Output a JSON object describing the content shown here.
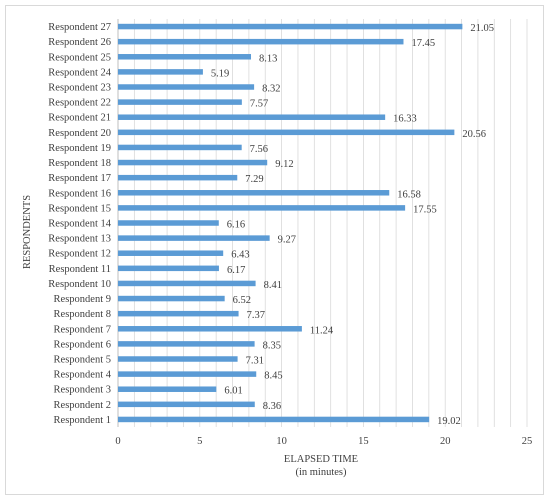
{
  "chart_data": {
    "type": "bar",
    "orientation": "horizontal",
    "categories": [
      "Respondent 1",
      "Respondent 2",
      "Respondent 3",
      "Respondent 4",
      "Respondent 5",
      "Respondent 6",
      "Respondent 7",
      "Respondent 8",
      "Respondent 9",
      "Respondent 10",
      "Respondent 11",
      "Respondent 12",
      "Respondent 13",
      "Respondent 14",
      "Respondent 15",
      "Respondent 16",
      "Respondent 17",
      "Respondent 18",
      "Respondent 19",
      "Respondent 20",
      "Respondent 21",
      "Respondent 22",
      "Respondent 23",
      "Respondent 24",
      "Respondent 25",
      "Respondent 26",
      "Respondent 27"
    ],
    "values": [
      19.02,
      8.36,
      6.01,
      8.45,
      7.31,
      8.35,
      11.24,
      7.37,
      6.52,
      8.41,
      6.17,
      6.43,
      9.27,
      6.16,
      17.55,
      16.58,
      7.29,
      9.12,
      7.56,
      20.56,
      16.33,
      7.57,
      8.32,
      5.19,
      8.13,
      17.45,
      21.05
    ],
    "value_labels": [
      "19.02",
      "8.36",
      "6.01",
      "8.45",
      "7.31",
      "8.35",
      "11.24",
      "7.37",
      "6.52",
      "8.41",
      "6.17",
      "6.43",
      "9.27",
      "6.16",
      "17.55",
      "16.58",
      "7.29",
      "9.12",
      "7.56",
      "20.56",
      "16.33",
      "7.57",
      "8.32",
      "5.19",
      "8.13",
      "17.45",
      "21.05"
    ],
    "xlabel_line1": "ELAPSED TIME",
    "xlabel_line2": "(in minutes)",
    "ylabel": "RESPONDENTS",
    "xlim": [
      0,
      25
    ],
    "xticks": [
      0,
      5,
      10,
      15,
      20,
      25
    ],
    "grid": true,
    "bar_color": "#5b9bd5",
    "grid_color": "#d9d9d9"
  }
}
